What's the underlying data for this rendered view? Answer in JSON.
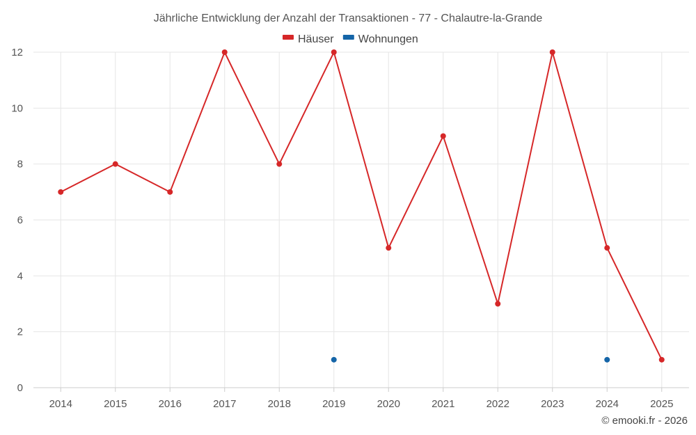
{
  "chart_data": {
    "type": "line",
    "title": "Jährliche Entwicklung der Anzahl der Transaktionen - 77 - Chalautre-la-Grande",
    "categories": [
      "2014",
      "2015",
      "2016",
      "2017",
      "2018",
      "2019",
      "2020",
      "2021",
      "2022",
      "2023",
      "2024",
      "2025"
    ],
    "series": [
      {
        "name": "Häuser",
        "color": "#d62728",
        "values": [
          7,
          8,
          7,
          12,
          8,
          12,
          5,
          9,
          3,
          12,
          5,
          1
        ]
      },
      {
        "name": "Wohnungen",
        "color": "#1565a8",
        "values": [
          null,
          null,
          null,
          null,
          null,
          1,
          null,
          null,
          null,
          null,
          1,
          null
        ]
      }
    ],
    "yticks": [
      0,
      2,
      4,
      6,
      8,
      10,
      12
    ],
    "ylim": [
      0,
      12
    ],
    "grid": true,
    "legend": "top-center"
  },
  "credit": "© emooki.fr - 2026"
}
